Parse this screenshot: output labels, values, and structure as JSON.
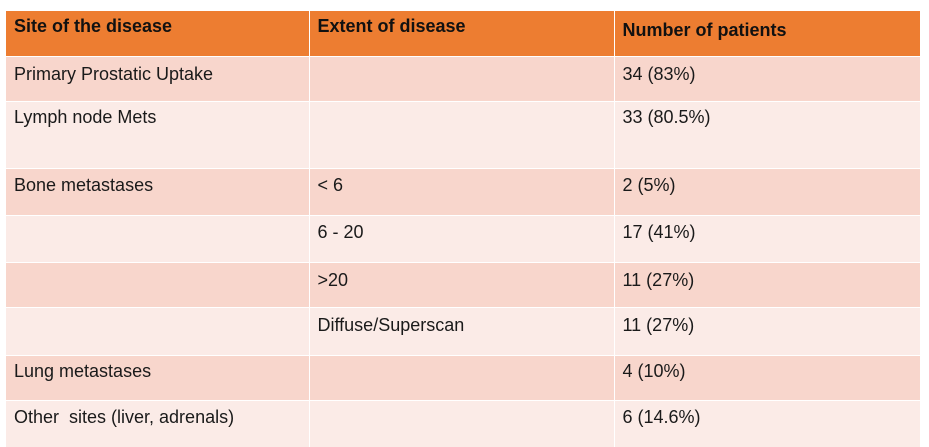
{
  "table": {
    "headers": [
      "Site of the disease",
      "Extent of disease",
      "Number of patients"
    ],
    "rows": [
      {
        "site": "Primary Prostatic Uptake",
        "extent": "",
        "patients": "34 (83%)"
      },
      {
        "site": "Lymph node Mets",
        "extent": "",
        "patients": "33 (80.5%)"
      },
      {
        "site": "Bone metastases",
        "extent": "< 6",
        "patients": "2 (5%)"
      },
      {
        "site": "",
        "extent": "6 - 20",
        "patients": "17 (41%)"
      },
      {
        "site": "",
        "extent": ">20",
        "patients": "11 (27%)"
      },
      {
        "site": "",
        "extent": "Diffuse/Superscan",
        "patients": "11 (27%)"
      },
      {
        "site": "Lung metastases",
        "extent": "",
        "patients": "4 (10%)"
      },
      {
        "site": "Other  sites (liver, adrenals)",
        "extent": "",
        "patients": "6 (14.6%)"
      }
    ]
  },
  "colors": {
    "header": "#ed7d31",
    "row_dark": "#f8d6cc",
    "row_light": "#fbebe7"
  }
}
